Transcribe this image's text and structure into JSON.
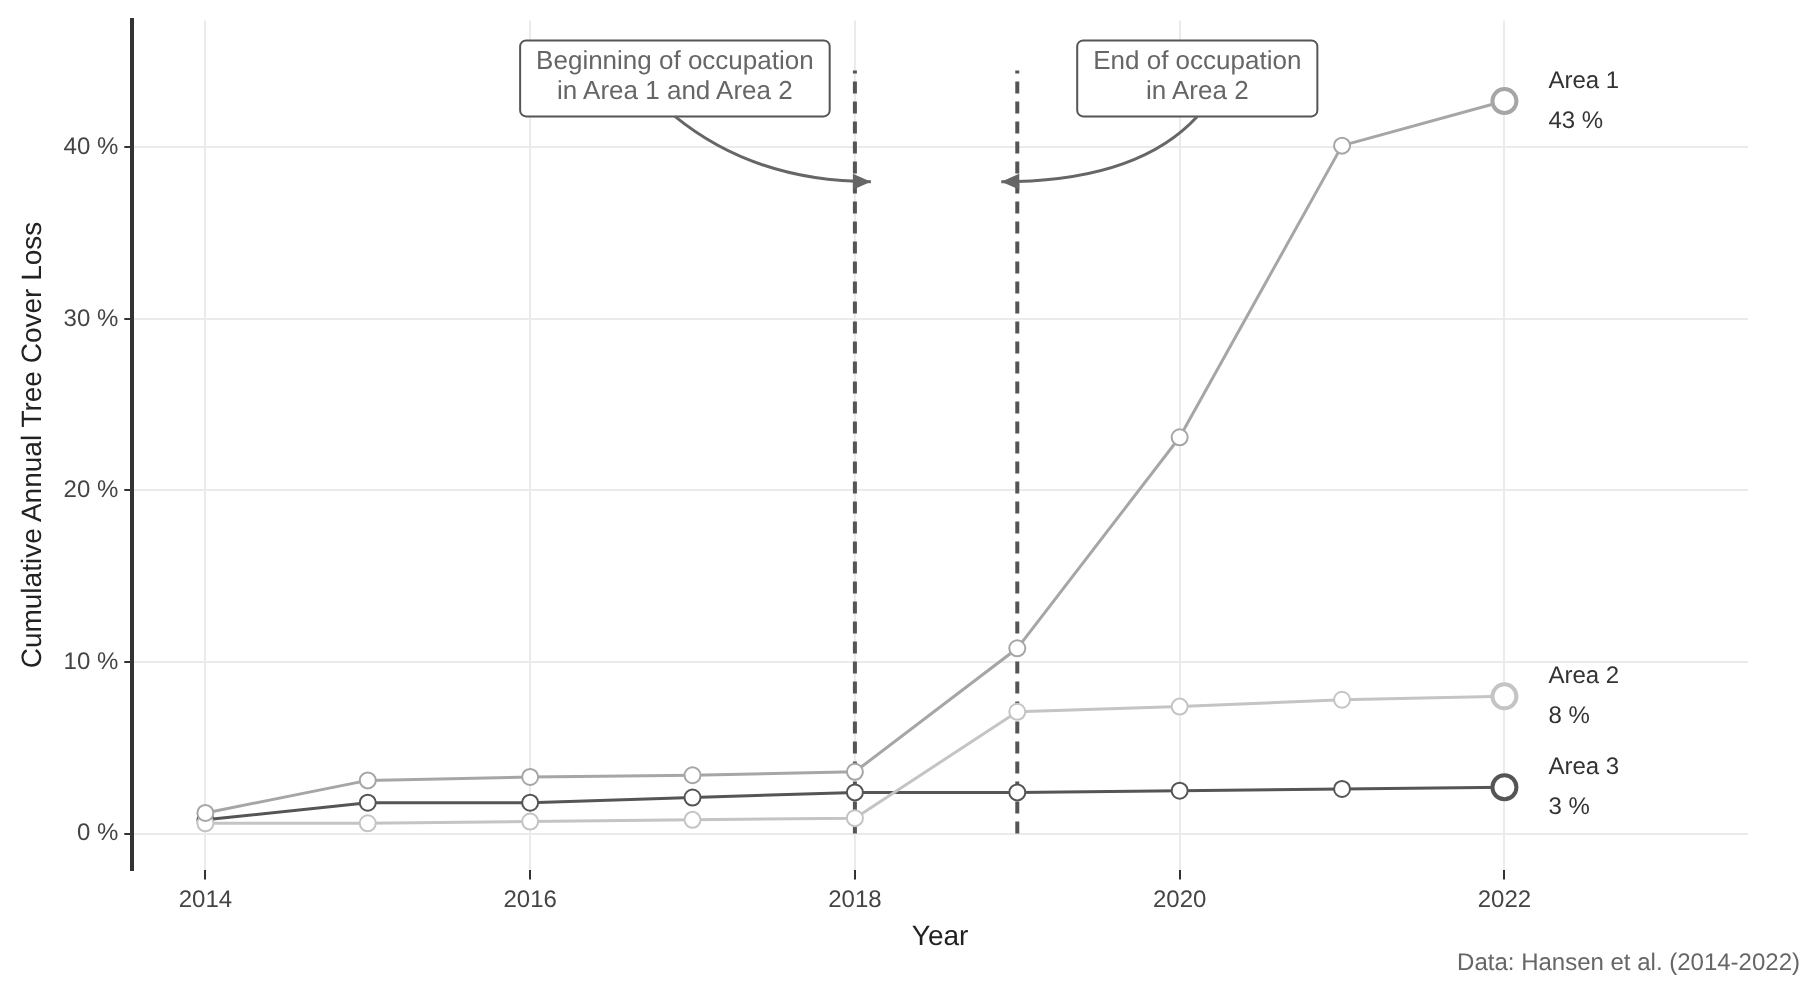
{
  "chart_data": {
    "type": "line",
    "xlabel": "Year",
    "ylabel": "Cumulative Annual Tree Cover Loss",
    "x": [
      2014,
      2015,
      2016,
      2017,
      2018,
      2019,
      2020,
      2021,
      2022
    ],
    "series": [
      {
        "name": "Area 1",
        "color": "#a6a6a6",
        "values": [
          1.2,
          3.1,
          3.3,
          3.4,
          3.6,
          10.8,
          23.1,
          40.1,
          42.7
        ],
        "value_labels": [
          null,
          null,
          null,
          null,
          null,
          null,
          null,
          null,
          "43 %"
        ]
      },
      {
        "name": "Area 2",
        "color": "#c4c4c4",
        "values": [
          0.6,
          0.6,
          0.7,
          0.8,
          0.9,
          7.1,
          7.4,
          7.8,
          8.0
        ],
        "value_labels": [
          null,
          null,
          null,
          null,
          null,
          null,
          null,
          null,
          "8 %"
        ]
      },
      {
        "name": "Area 3",
        "color": "#555555",
        "values": [
          0.8,
          1.8,
          1.8,
          2.1,
          2.4,
          2.4,
          2.5,
          2.6,
          2.7
        ],
        "value_labels": [
          null,
          null,
          null,
          null,
          null,
          null,
          null,
          null,
          "3 %"
        ]
      }
    ],
    "xlim": [
      2013.55,
      2023.5
    ],
    "xticks": [
      2014,
      2016,
      2018,
      2020,
      2022
    ],
    "ylim": [
      -2.1,
      47.4
    ],
    "yticks": [
      {
        "value": 0,
        "label": "0 %"
      },
      {
        "value": 10,
        "label": "10 %"
      },
      {
        "value": 20,
        "label": "20 %"
      },
      {
        "value": 30,
        "label": "30 %"
      },
      {
        "value": 40,
        "label": "40 %"
      }
    ],
    "ref_lines": [
      {
        "axis": "x",
        "value": 2018,
        "color": "#555555",
        "line_style": "dashed"
      },
      {
        "axis": "x",
        "value": 2019,
        "color": "#555555",
        "line_style": "dashed"
      }
    ],
    "annotations": [
      {
        "text": "Beginning of occupation\nin Area 1 and Area 2",
        "x": 2018,
        "y": 38
      },
      {
        "text": "End of occupation\nin Area 2",
        "x": 2019,
        "y": 38
      },
      "Data: Hansen et al. (2014-2022)"
    ],
    "grid": true,
    "legend": false,
    "marker": "circle",
    "line_style": "solid"
  }
}
